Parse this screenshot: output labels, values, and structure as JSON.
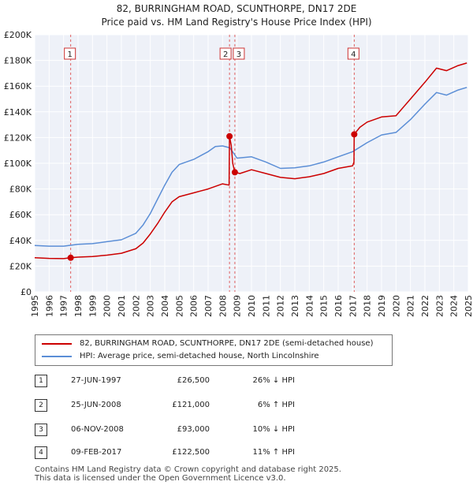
{
  "chart_data": {
    "type": "line",
    "title": "82, BURRINGHAM ROAD, SCUNTHORPE, DN17 2DE",
    "subtitle": "Price paid vs. HM Land Registry's House Price Index (HPI)",
    "x_range": [
      1995.0,
      2025.0
    ],
    "ylim": [
      0,
      200000
    ],
    "y_ticks": [
      {
        "value": 0,
        "label": "£0"
      },
      {
        "value": 20000,
        "label": "£20K"
      },
      {
        "value": 40000,
        "label": "£40K"
      },
      {
        "value": 60000,
        "label": "£60K"
      },
      {
        "value": 80000,
        "label": "£80K"
      },
      {
        "value": 100000,
        "label": "£100K"
      },
      {
        "value": 120000,
        "label": "£120K"
      },
      {
        "value": 140000,
        "label": "£140K"
      },
      {
        "value": 160000,
        "label": "£160K"
      },
      {
        "value": 180000,
        "label": "£180K"
      },
      {
        "value": 200000,
        "label": "£200K"
      }
    ],
    "x_ticks": [
      "1995",
      "1996",
      "1997",
      "1998",
      "1999",
      "2000",
      "2001",
      "2002",
      "2003",
      "2004",
      "2005",
      "2006",
      "2007",
      "2008",
      "2009",
      "2010",
      "2011",
      "2012",
      "2013",
      "2014",
      "2015",
      "2016",
      "2017",
      "2018",
      "2019",
      "2020",
      "2021",
      "2022",
      "2023",
      "2024",
      "2025"
    ],
    "grid": true,
    "series": [
      {
        "name": "82, BURRINGHAM ROAD, SCUNTHORPE, DN17 2DE (semi-detached house)",
        "color": "#cc0000",
        "points": [
          [
            1995.0,
            26500
          ],
          [
            1996.0,
            26000
          ],
          [
            1997.0,
            25800
          ],
          [
            1997.49,
            26500
          ],
          [
            1998.0,
            27000
          ],
          [
            1999.0,
            27500
          ],
          [
            2000.0,
            28500
          ],
          [
            2001.0,
            30000
          ],
          [
            2002.0,
            33500
          ],
          [
            2002.5,
            38000
          ],
          [
            2003.0,
            45000
          ],
          [
            2003.5,
            53000
          ],
          [
            2004.0,
            62000
          ],
          [
            2004.5,
            70000
          ],
          [
            2005.0,
            74000
          ],
          [
            2006.0,
            77000
          ],
          [
            2007.0,
            80000
          ],
          [
            2008.0,
            84000
          ],
          [
            2008.45,
            83000
          ],
          [
            2008.48,
            121000
          ],
          [
            2008.6,
            114000
          ],
          [
            2008.7,
            100000
          ],
          [
            2008.85,
            93000
          ],
          [
            2009.2,
            92000
          ],
          [
            2010.0,
            95000
          ],
          [
            2011.0,
            92000
          ],
          [
            2012.0,
            89000
          ],
          [
            2013.0,
            88000
          ],
          [
            2014.0,
            89500
          ],
          [
            2015.0,
            92000
          ],
          [
            2016.0,
            96000
          ],
          [
            2017.0,
            98000
          ],
          [
            2017.09,
            101000
          ],
          [
            2017.11,
            122500
          ],
          [
            2017.5,
            128000
          ],
          [
            2018.0,
            132000
          ],
          [
            2019.0,
            136000
          ],
          [
            2020.0,
            137000
          ],
          [
            2021.0,
            150000
          ],
          [
            2022.0,
            163000
          ],
          [
            2022.8,
            174000
          ],
          [
            2023.5,
            172000
          ],
          [
            2024.3,
            176000
          ],
          [
            2024.9,
            178000
          ]
        ]
      },
      {
        "name": "HPI: Average price, semi-detached house, North Lincolnshire",
        "color": "#5b8ed6",
        "points": [
          [
            1995.0,
            36000
          ],
          [
            1996.0,
            35500
          ],
          [
            1997.0,
            35500
          ],
          [
            1998.0,
            37000
          ],
          [
            1999.0,
            37500
          ],
          [
            2000.0,
            39000
          ],
          [
            2001.0,
            40500
          ],
          [
            2002.0,
            45500
          ],
          [
            2002.5,
            52000
          ],
          [
            2003.0,
            61000
          ],
          [
            2003.5,
            72000
          ],
          [
            2004.0,
            83000
          ],
          [
            2004.5,
            93000
          ],
          [
            2005.0,
            99000
          ],
          [
            2006.0,
            103000
          ],
          [
            2007.0,
            109000
          ],
          [
            2007.5,
            113000
          ],
          [
            2008.0,
            113500
          ],
          [
            2008.5,
            112000
          ],
          [
            2009.0,
            104000
          ],
          [
            2010.0,
            105000
          ],
          [
            2011.0,
            101000
          ],
          [
            2012.0,
            96000
          ],
          [
            2013.0,
            96500
          ],
          [
            2014.0,
            98000
          ],
          [
            2015.0,
            101000
          ],
          [
            2016.0,
            105000
          ],
          [
            2017.0,
            109000
          ],
          [
            2018.0,
            116000
          ],
          [
            2019.0,
            122000
          ],
          [
            2020.0,
            124000
          ],
          [
            2021.0,
            134000
          ],
          [
            2022.0,
            146000
          ],
          [
            2022.8,
            155000
          ],
          [
            2023.5,
            153000
          ],
          [
            2024.3,
            157000
          ],
          [
            2024.9,
            159000
          ]
        ]
      }
    ],
    "markers": [
      {
        "num": "1",
        "x": 1997.49,
        "y": 26500
      },
      {
        "num": "2",
        "x": 2008.48,
        "y": 121000
      },
      {
        "num": "3",
        "x": 2008.85,
        "y": 93000
      },
      {
        "num": "4",
        "x": 2017.11,
        "y": 122500
      }
    ]
  },
  "transactions": [
    {
      "num": "1",
      "date": "27-JUN-1997",
      "price": "£26,500",
      "pct": "26% ↓ HPI"
    },
    {
      "num": "2",
      "date": "25-JUN-2008",
      "price": "£121,000",
      "pct": "6% ↑ HPI"
    },
    {
      "num": "3",
      "date": "06-NOV-2008",
      "price": "£93,000",
      "pct": "10% ↓ HPI"
    },
    {
      "num": "4",
      "date": "09-FEB-2017",
      "price": "£122,500",
      "pct": "11% ↑ HPI"
    }
  ],
  "footer": {
    "line1": "Contains HM Land Registry data © Crown copyright and database right 2025.",
    "line2": "This data is licensed under the Open Government Licence v3.0."
  }
}
